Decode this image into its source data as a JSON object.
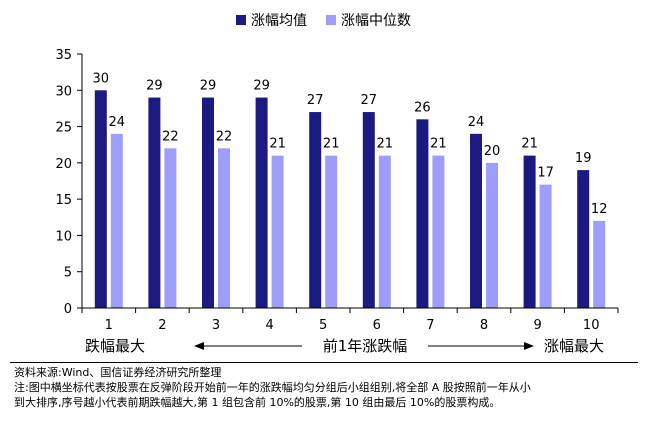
{
  "chart_data": {
    "type": "bar",
    "categories": [
      "1",
      "2",
      "3",
      "4",
      "5",
      "6",
      "7",
      "8",
      "9",
      "10"
    ],
    "series": [
      {
        "name": "涨幅均值",
        "values": [
          30,
          29,
          29,
          29,
          27,
          27,
          26,
          24,
          21,
          19
        ],
        "color": "#1a1a80"
      },
      {
        "name": "涨幅中位数",
        "values": [
          24,
          22,
          22,
          21,
          21,
          21,
          21,
          20,
          17,
          12
        ],
        "color": "#9d9dfa"
      }
    ],
    "ylim": [
      0,
      35
    ],
    "yticks": [
      0,
      5,
      10,
      15,
      20,
      25,
      30,
      35
    ],
    "grid": false,
    "legend": "top-center",
    "bar_labels_shown": [
      [
        "30",
        "29",
        "29",
        "29",
        "27",
        "27",
        "26",
        "24",
        "21",
        "19"
      ],
      [
        "24",
        "22",
        "22",
        "21",
        "21",
        "21",
        "21",
        "20",
        "17",
        "12"
      ]
    ]
  },
  "axis_note": {
    "left": "跌幅最大",
    "middle": "前1年涨跌幅",
    "right": "涨幅最大"
  },
  "source_line": "资料来源:Wind、国信证券经济研究所整理",
  "note_line1": "注:图中横坐标代表按股票在反弹阶段开始前一年的涨跌幅均匀分组后小组组别,将全部 A 股按照前一年从小",
  "note_line2": "到大排序,序号越小代表前期跌幅越大,第 1 组包含前 10%的股票,第 10 组由最后 10%的股票构成。"
}
